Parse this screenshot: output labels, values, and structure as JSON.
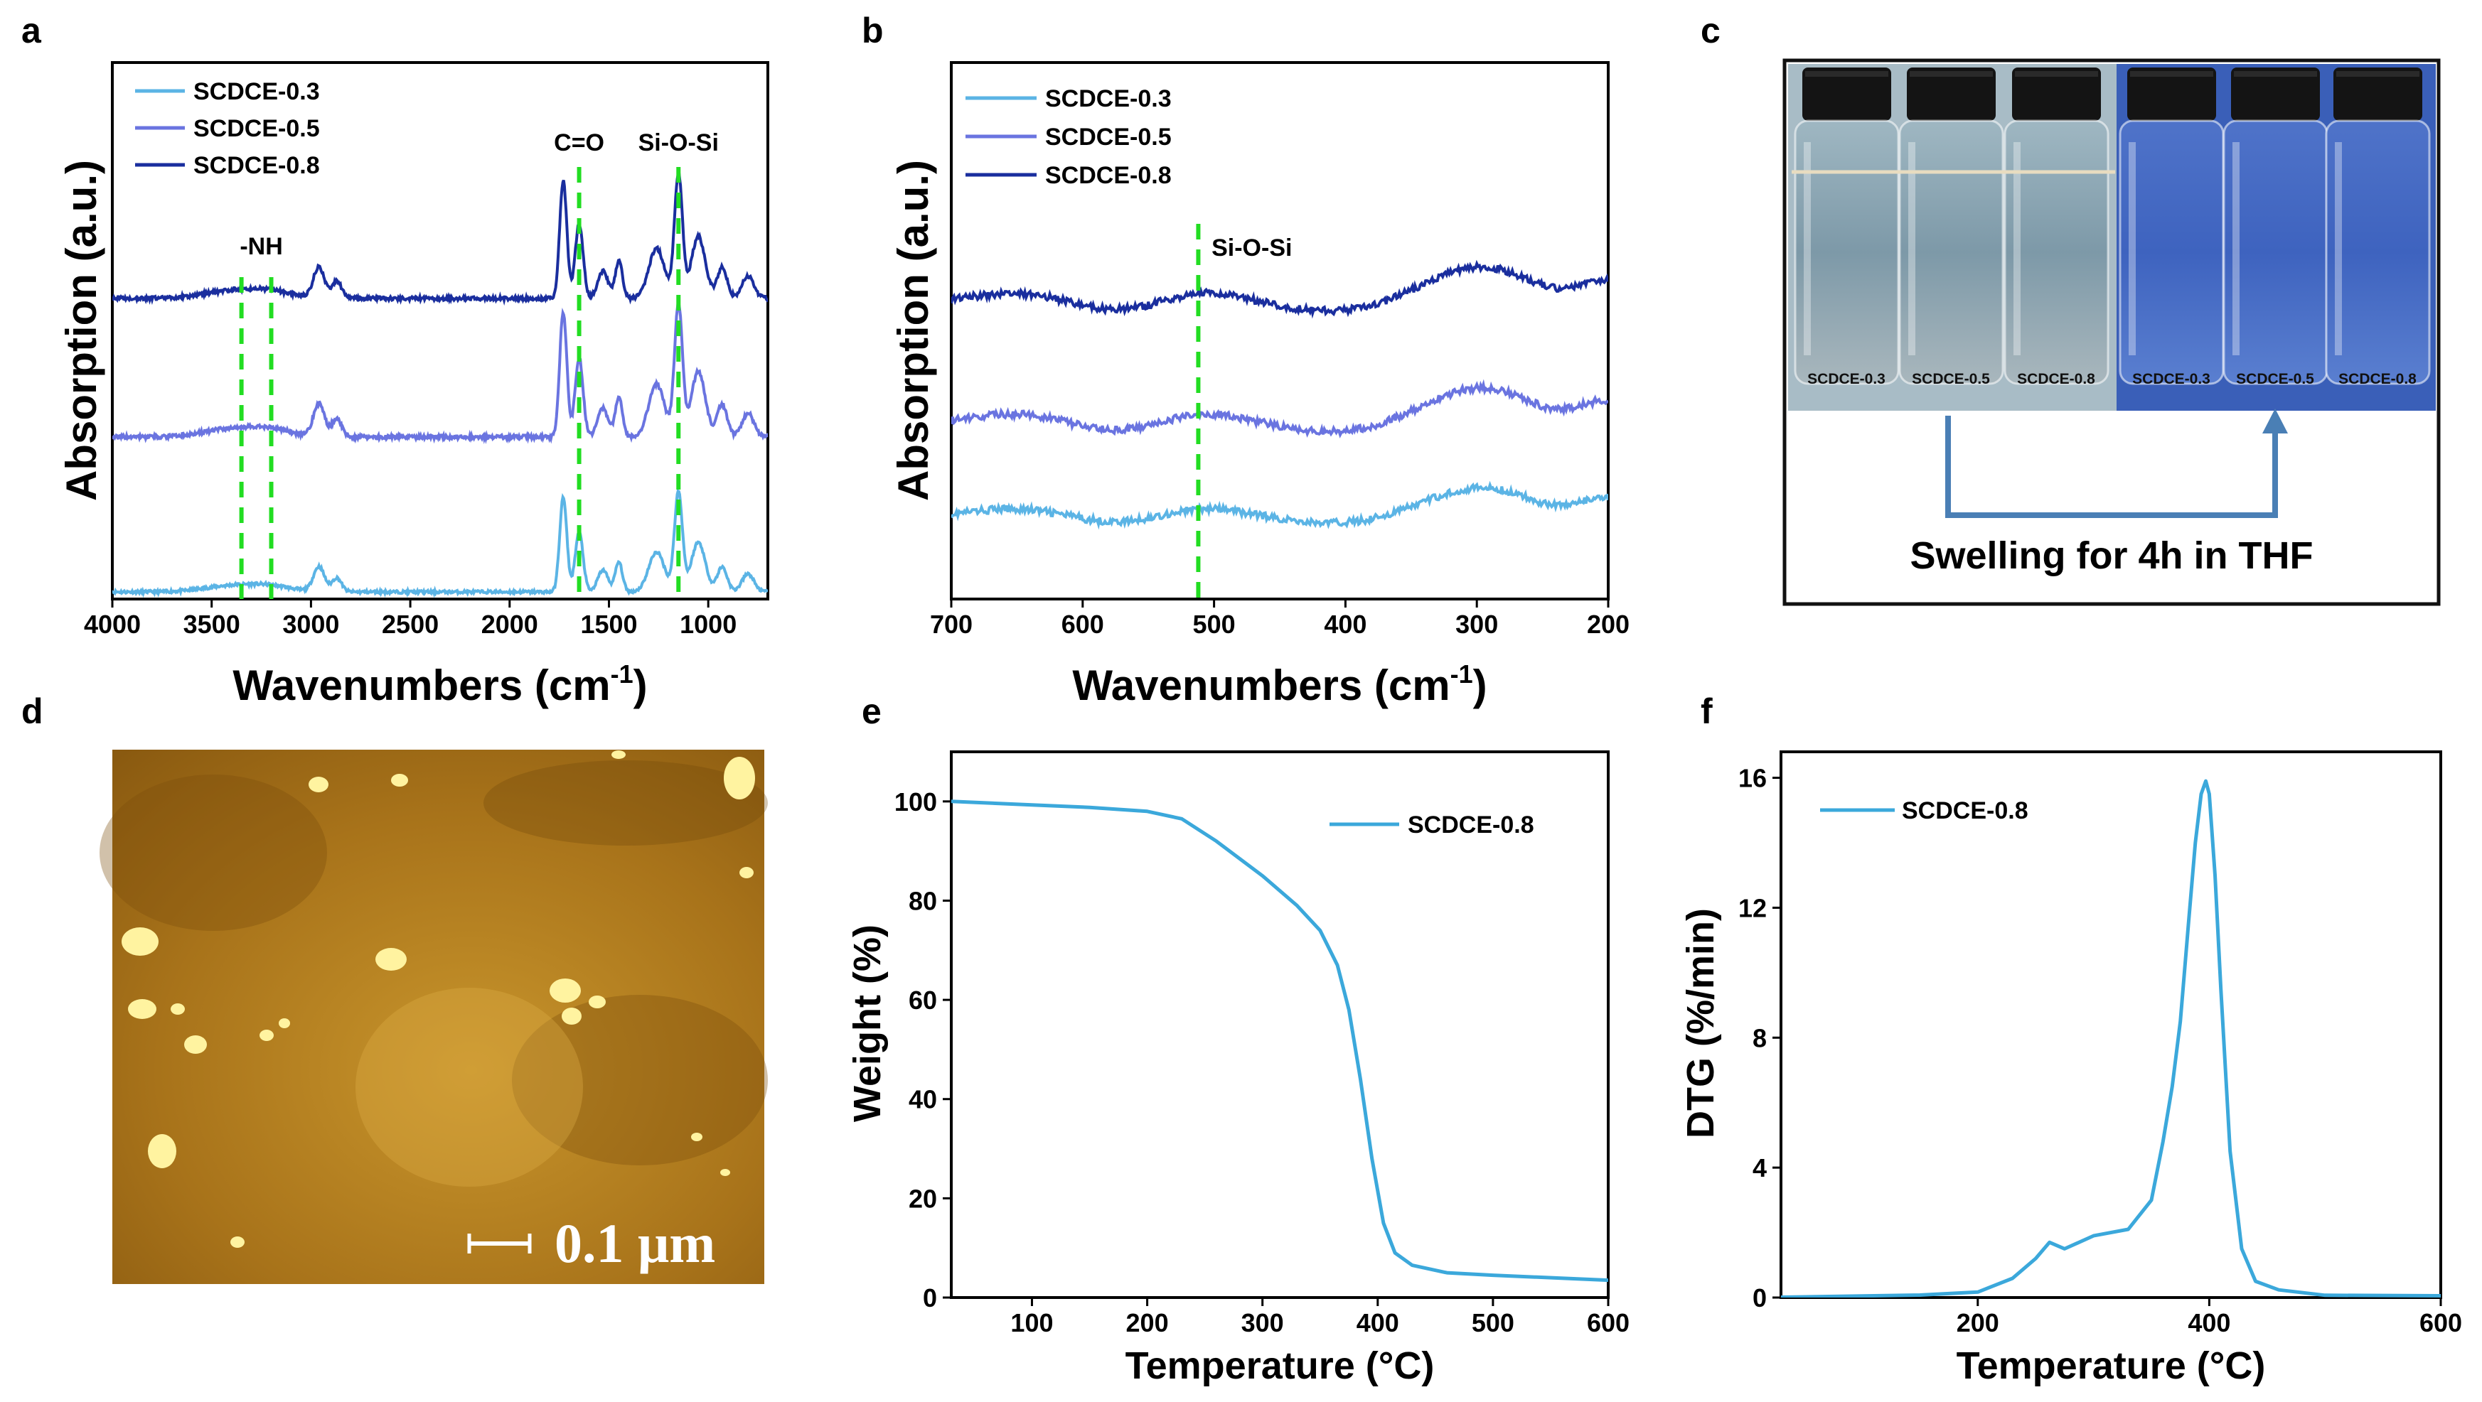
{
  "panels": {
    "a": "a",
    "b": "b",
    "c": "c",
    "d": "d",
    "e": "e",
    "f": "f"
  },
  "colors": {
    "s03": "#5BB4E5",
    "s05": "#6A74E0",
    "s08": "#1A2E9E",
    "tga": "#3BA8DB",
    "guide": "#22DD22",
    "arrow": "#4A7FB5"
  },
  "chart_data": [
    {
      "id": "a",
      "type": "line",
      "title": "",
      "xlabel": "Wavenumbers (cm",
      "xlabel_sup": "-1",
      "xlabel_close": ")",
      "ylabel": "Absorption (a.u.)",
      "xlim": [
        4000,
        700
      ],
      "x_reversed": true,
      "xticks": [
        4000,
        3500,
        3000,
        2500,
        2000,
        1500,
        1000
      ],
      "series": [
        {
          "name": "SCDCE-0.3",
          "color": "#5BB4E5",
          "offset": 0
        },
        {
          "name": "SCDCE-0.5",
          "color": "#6A74E0",
          "offset": 1
        },
        {
          "name": "SCDCE-0.8",
          "color": "#1A2E9E",
          "offset": 2
        }
      ],
      "peaks": [
        {
          "x": 3400,
          "h": 0.06,
          "w": 140
        },
        {
          "x": 3200,
          "h": 0.05,
          "w": 110
        },
        {
          "x": 2960,
          "h": 0.25,
          "w": 28
        },
        {
          "x": 2870,
          "h": 0.14,
          "w": 24
        },
        {
          "x": 1730,
          "h": 0.95,
          "w": 18
        },
        {
          "x": 1650,
          "h": 0.6,
          "w": 20
        },
        {
          "x": 1530,
          "h": 0.22,
          "w": 26
        },
        {
          "x": 1450,
          "h": 0.3,
          "w": 18
        },
        {
          "x": 1260,
          "h": 0.4,
          "w": 40
        },
        {
          "x": 1150,
          "h": 1.0,
          "w": 20
        },
        {
          "x": 1050,
          "h": 0.5,
          "w": 35
        },
        {
          "x": 930,
          "h": 0.25,
          "w": 25
        },
        {
          "x": 800,
          "h": 0.18,
          "w": 30
        }
      ],
      "annotations": [
        {
          "text": "-NH",
          "x": 3250
        },
        {
          "text": "C=O",
          "x": 1650
        },
        {
          "text": "Si-O-Si",
          "x": 1150
        }
      ],
      "guides": [
        3350,
        3200,
        1650,
        1150
      ]
    },
    {
      "id": "b",
      "type": "line",
      "xlabel": "Wavenumbers (cm",
      "xlabel_sup": "-1",
      "xlabel_close": ")",
      "ylabel": "Absorption (a.u.)",
      "xlim": [
        700,
        200
      ],
      "x_reversed": true,
      "xticks": [
        700,
        600,
        500,
        400,
        300,
        200
      ],
      "series": [
        {
          "name": "SCDCE-0.3",
          "color": "#5BB4E5",
          "offset": 0
        },
        {
          "name": "SCDCE-0.5",
          "color": "#6A74E0",
          "offset": 1
        },
        {
          "name": "SCDCE-0.8",
          "color": "#1A2E9E",
          "offset": 2
        }
      ],
      "annotations": [
        {
          "text": "Si-O-Si",
          "x": 510
        }
      ],
      "guides": [
        512
      ]
    },
    {
      "id": "e",
      "type": "line",
      "xlabel": "Temperature (°C)",
      "ylabel": "Weight (%)",
      "xlim": [
        30,
        600
      ],
      "ylim": [
        0,
        110
      ],
      "xticks": [
        100,
        200,
        300,
        400,
        500,
        600
      ],
      "yticks": [
        0,
        20,
        40,
        60,
        80,
        100
      ],
      "series": [
        {
          "name": "SCDCE-0.8",
          "color": "#3BA8DB",
          "x": [
            30,
            100,
            150,
            200,
            230,
            260,
            300,
            330,
            350,
            365,
            375,
            385,
            395,
            405,
            415,
            430,
            460,
            500,
            600
          ],
          "y": [
            100,
            99.3,
            98.8,
            98,
            96.5,
            92,
            85,
            79,
            74,
            67,
            58,
            44,
            28,
            15,
            9,
            6.5,
            5,
            4.5,
            3.5
          ]
        }
      ]
    },
    {
      "id": "f",
      "type": "line",
      "xlabel": "Temperature (°C)",
      "ylabel": "DTG (%/min)",
      "xlim": [
        30,
        600
      ],
      "ylim": [
        0,
        16.8
      ],
      "xticks": [
        200,
        400,
        600
      ],
      "yticks": [
        0,
        4,
        8,
        12,
        16
      ],
      "series": [
        {
          "name": "SCDCE-0.8",
          "color": "#3BA8DB",
          "x": [
            30,
            150,
            200,
            230,
            250,
            262,
            275,
            300,
            330,
            350,
            360,
            368,
            375,
            382,
            388,
            393,
            397,
            400,
            405,
            410,
            418,
            428,
            440,
            460,
            500,
            600
          ],
          "y": [
            0.05,
            0.1,
            0.2,
            0.6,
            1.2,
            1.7,
            1.5,
            1.9,
            2.1,
            3.0,
            4.8,
            6.5,
            8.5,
            11.5,
            14.0,
            15.5,
            15.9,
            15.5,
            13.0,
            9.5,
            4.5,
            1.5,
            0.5,
            0.2,
            0.1,
            0.05
          ]
        }
      ]
    }
  ],
  "panel_c": {
    "vial_labels_left": [
      "SCDCE-0.3",
      "SCDCE-0.5",
      "SCDCE-0.8"
    ],
    "vial_labels_right": [
      "SCDCE-0.3",
      "SCDCE-0.5",
      "SCDCE-0.8"
    ],
    "caption": "Swelling for 4h in THF"
  },
  "panel_d": {
    "scale_label": "0.1 μm"
  }
}
